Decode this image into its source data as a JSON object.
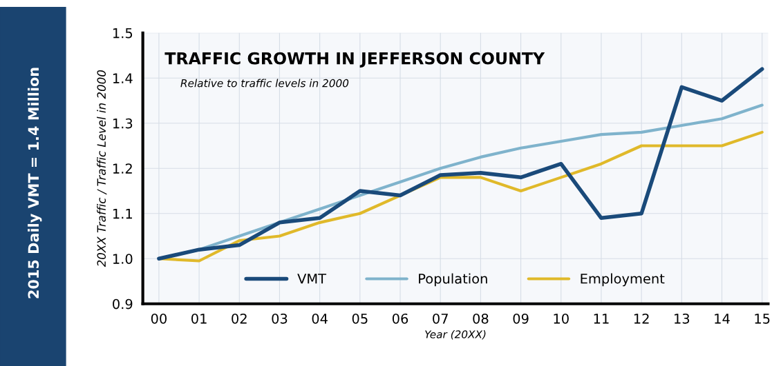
{
  "chart_data": {
    "type": "line",
    "title": "TRAFFIC GROWTH IN JEFFERSON COUNTY",
    "subtitle": "Relative to traffic levels in 2000",
    "xlabel": "Year (20XX)",
    "ylabel": "20XX Traffic / Traffic Level in 2000",
    "annotations": [
      "2015 Daily VMT = 1.4 Million"
    ],
    "categories": [
      "00",
      "01",
      "02",
      "03",
      "04",
      "05",
      "06",
      "07",
      "08",
      "09",
      "10",
      "11",
      "12",
      "13",
      "14",
      "15"
    ],
    "series": [
      {
        "name": "VMT",
        "color": "#1a4a7a",
        "values": [
          1.0,
          1.02,
          1.03,
          1.08,
          1.09,
          1.15,
          1.14,
          1.185,
          1.19,
          1.18,
          1.21,
          1.09,
          1.1,
          1.38,
          1.35,
          1.42
        ]
      },
      {
        "name": "Population",
        "color": "#7fb3cc",
        "values": [
          1.0,
          1.02,
          1.05,
          1.08,
          1.11,
          1.14,
          1.17,
          1.2,
          1.225,
          1.245,
          1.26,
          1.275,
          1.28,
          1.295,
          1.31,
          1.34
        ]
      },
      {
        "name": "Employment",
        "color": "#e0b92a",
        "values": [
          1.0,
          0.995,
          1.04,
          1.05,
          1.08,
          1.1,
          1.14,
          1.18,
          1.18,
          1.15,
          1.18,
          1.21,
          1.25,
          1.25,
          1.25,
          1.28
        ]
      }
    ],
    "ylim": [
      0.9,
      1.5
    ],
    "yticks": [
      0.9,
      {
        "value": 1,
        "label": "1.0"
      },
      1.1,
      1.2,
      1.3,
      1.4,
      1.5
    ],
    "grid": true,
    "legend": "bottom"
  }
}
